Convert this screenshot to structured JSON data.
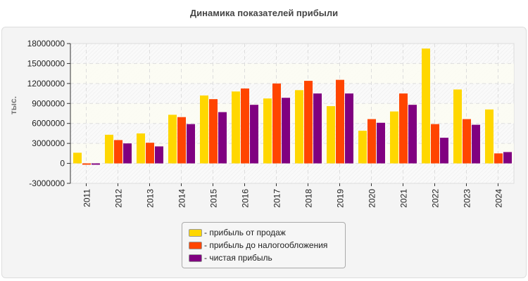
{
  "chart_data": {
    "type": "bar",
    "title": "Динамика показателей прибыли",
    "ylabel": "тыс.",
    "xlabel": "",
    "ylim": [
      -3000000,
      18000000
    ],
    "yticks": [
      "18000000",
      "15000000",
      "12000000",
      "9000000",
      "6000000",
      "3000000",
      "0",
      "-3000000"
    ],
    "grid": true,
    "legend": "bottom",
    "categories": [
      "2011",
      "2012",
      "2013",
      "2014",
      "2015",
      "2016",
      "2017",
      "2018",
      "2019",
      "2020",
      "2021",
      "2022",
      "2023",
      "2024"
    ],
    "series": [
      {
        "name": "- прибыль от продаж",
        "color": "#ffd700",
        "values": [
          1600000,
          4300000,
          4500000,
          7300000,
          10200000,
          10800000,
          9750000,
          11000000,
          8600000,
          4900000,
          7800000,
          17250000,
          11100000,
          8100000
        ]
      },
      {
        "name": "- прибыль до налогообложения",
        "color": "#ff4500",
        "values": [
          -200000,
          3500000,
          3100000,
          6950000,
          9650000,
          11250000,
          12000000,
          12400000,
          12550000,
          6650000,
          10500000,
          5900000,
          6650000,
          1500000
        ]
      },
      {
        "name": "- чистая прибыль",
        "color": "#800080",
        "values": [
          -200000,
          3000000,
          2550000,
          5900000,
          7700000,
          8800000,
          9850000,
          10500000,
          10500000,
          6100000,
          8800000,
          3850000,
          5800000,
          1700000
        ]
      }
    ]
  }
}
